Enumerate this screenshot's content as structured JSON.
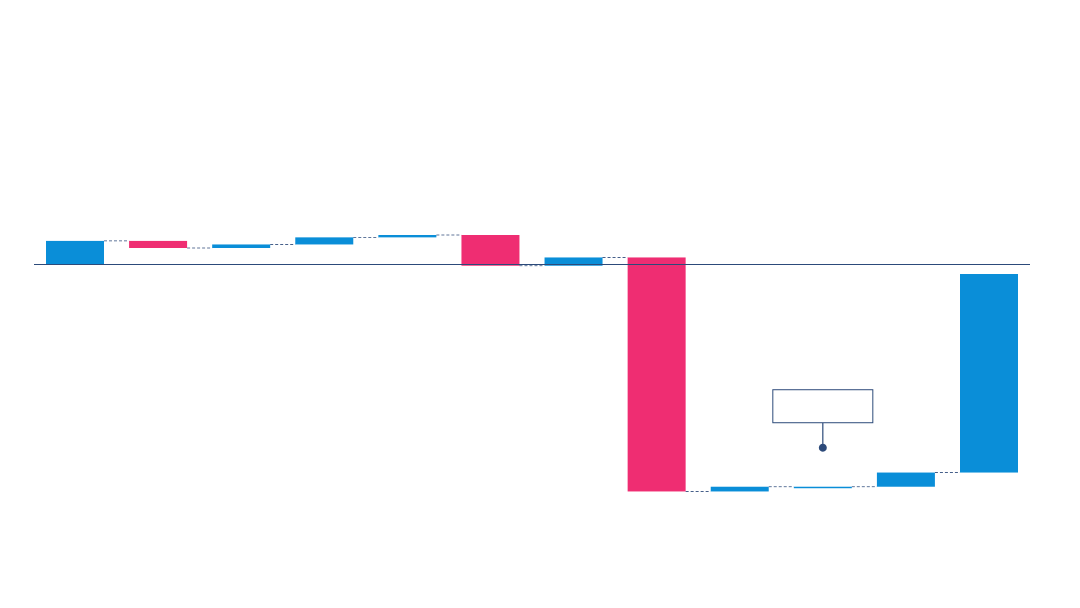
{
  "chart_data": {
    "type": "waterfall",
    "title": "",
    "xlabel": "",
    "ylabel": "",
    "ylim": [
      -25,
      19
    ],
    "baseline": 0,
    "colors": {
      "increase": "#0a8ed8",
      "decrease": "#ef2d72",
      "axis": "#2c4a7a",
      "connector": "#2c4a7a",
      "callout": "#2c4a7a"
    },
    "steps": [
      {
        "category": "",
        "delta": 2.0
      },
      {
        "category": "",
        "delta": -0.6
      },
      {
        "category": "",
        "delta": 0.3
      },
      {
        "category": "",
        "delta": 0.6
      },
      {
        "category": "",
        "delta": 0.2
      },
      {
        "category": "",
        "delta": -2.6
      },
      {
        "category": "",
        "delta": 0.7
      },
      {
        "category": "",
        "delta": -19.8
      },
      {
        "category": "",
        "delta": 0.4
      },
      {
        "category": "",
        "delta": 0.0
      },
      {
        "category": "",
        "delta": 1.2
      },
      {
        "category": "",
        "delta": 16.8
      }
    ],
    "callout": {
      "step_index": 9,
      "text": ""
    }
  }
}
